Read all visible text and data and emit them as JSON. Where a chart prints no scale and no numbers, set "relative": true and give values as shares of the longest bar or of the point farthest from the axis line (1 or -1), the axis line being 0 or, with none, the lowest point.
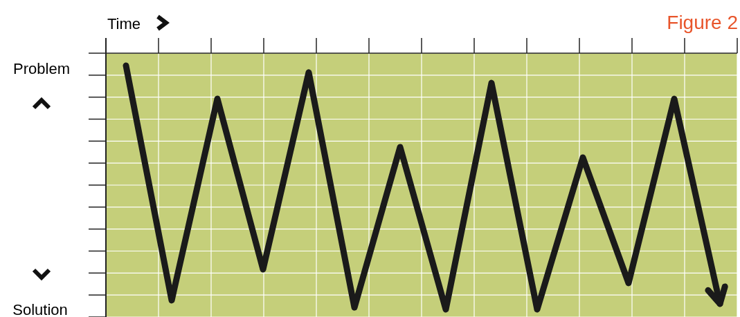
{
  "chart_data": {
    "type": "line",
    "title": "Figure 2",
    "xlabel": "Time",
    "annotations": [
      "Problem",
      "Solution"
    ],
    "relative": true,
    "categories": [
      null,
      null,
      null,
      null,
      null,
      null,
      null,
      null,
      null,
      null,
      null,
      null,
      null,
      null
    ],
    "grid": true,
    "marker": "none",
    "line_style": "solid",
    "series": [
      {
        "color": "#1a1a1a",
        "values": [
          1,
          0.037,
          0.864,
          0.164,
          0.972,
          0.008,
          0.666,
          0,
          0.929,
          0,
          0.623,
          0.108,
          0.864,
          0.023
        ]
      }
    ]
  }
}
